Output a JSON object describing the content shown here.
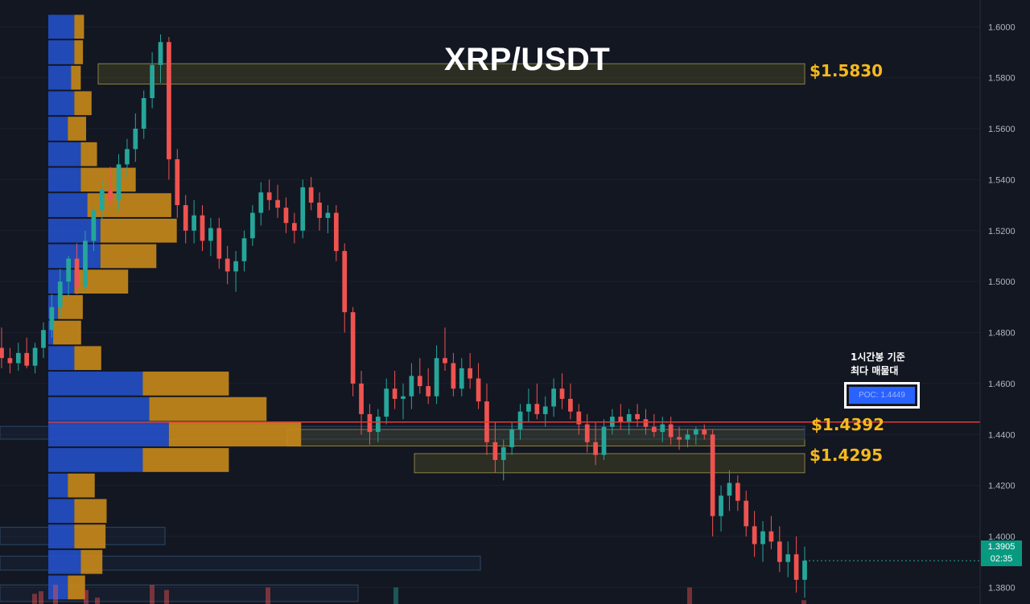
{
  "chart_data": {
    "type": "candlestick",
    "title": "XRP/USDT",
    "y_axis": {
      "ticks": [
        "1.6000",
        "1.5800",
        "1.5600",
        "1.5400",
        "1.5200",
        "1.5000",
        "1.4800",
        "1.4600",
        "1.4400",
        "1.4200",
        "1.4000",
        "1.3800"
      ],
      "ylim": [
        1.3735,
        1.6105
      ]
    },
    "current_price": "1.3905",
    "countdown": "02:35",
    "poc": {
      "label": "POC: 1.4449",
      "value": 1.4449
    },
    "annotation": [
      "1시간봉 기준",
      "최다 매물대"
    ],
    "levels": [
      {
        "label": "$1.5830",
        "high": 1.5855,
        "low": 1.5775
      },
      {
        "label": "$1.4392",
        "high": 1.442,
        "low": 1.4355
      },
      {
        "label": "$1.4295",
        "high": 1.4325,
        "low": 1.425
      }
    ],
    "volume_profile": [
      {
        "price": 1.6,
        "buy": 8,
        "sell": 0.9
      },
      {
        "price": 1.59,
        "buy": 8,
        "sell": 0.8
      },
      {
        "price": 1.58,
        "buy": 7,
        "sell": 0.9
      },
      {
        "price": 1.57,
        "buy": 8,
        "sell": 1.6
      },
      {
        "price": 1.56,
        "buy": 6,
        "sell": 1.7
      },
      {
        "price": 1.55,
        "buy": 10,
        "sell": 1.5
      },
      {
        "price": 1.54,
        "buy": 10,
        "sell": 5.1
      },
      {
        "price": 1.53,
        "buy": 12,
        "sell": 7.8
      },
      {
        "price": 1.52,
        "buy": 16,
        "sell": 7.1
      },
      {
        "price": 1.51,
        "buy": 16,
        "sell": 5.2
      },
      {
        "price": 1.5,
        "buy": 8,
        "sell": 5.0
      },
      {
        "price": 1.49,
        "buy": 3,
        "sell": 2.3
      },
      {
        "price": 1.48,
        "buy": 1.5,
        "sell": 2.6
      },
      {
        "price": 1.47,
        "buy": 8,
        "sell": 2.5
      },
      {
        "price": 1.46,
        "buy": 29,
        "sell": 8.0
      },
      {
        "price": 1.45,
        "buy": 31,
        "sell": 10.9
      },
      {
        "price": 1.44,
        "buy": 37,
        "sell": 12.3
      },
      {
        "price": 1.43,
        "buy": 29,
        "sell": 8.0
      },
      {
        "price": 1.42,
        "buy": 6,
        "sell": 2.5
      },
      {
        "price": 1.41,
        "buy": 8,
        "sell": 3.0
      },
      {
        "price": 1.4,
        "buy": 8,
        "sell": 2.9
      },
      {
        "price": 1.39,
        "buy": 10,
        "sell": 2.0
      },
      {
        "price": 1.38,
        "buy": 6,
        "sell": 1.6
      }
    ],
    "candles": [
      [
        1.474,
        1.482,
        1.466,
        1.47
      ],
      [
        1.47,
        1.474,
        1.464,
        1.468
      ],
      [
        1.468,
        1.476,
        1.465,
        1.472
      ],
      [
        1.472,
        1.478,
        1.466,
        1.467
      ],
      [
        1.467,
        1.476,
        1.464,
        1.474
      ],
      [
        1.474,
        1.484,
        1.47,
        1.481
      ],
      [
        1.481,
        1.495,
        1.478,
        1.49
      ],
      [
        1.49,
        1.505,
        1.486,
        1.5
      ],
      [
        1.5,
        1.51,
        1.494,
        1.509
      ],
      [
        1.509,
        1.515,
        1.495,
        1.498
      ],
      [
        1.498,
        1.52,
        1.496,
        1.516
      ],
      [
        1.516,
        1.53,
        1.512,
        1.528
      ],
      [
        1.528,
        1.54,
        1.524,
        1.536
      ],
      [
        1.536,
        1.545,
        1.53,
        1.532
      ],
      [
        1.532,
        1.55,
        1.528,
        1.546
      ],
      [
        1.546,
        1.556,
        1.541,
        1.552
      ],
      [
        1.552,
        1.566,
        1.547,
        1.56
      ],
      [
        1.56,
        1.575,
        1.556,
        1.572
      ],
      [
        1.572,
        1.59,
        1.568,
        1.585
      ],
      [
        1.585,
        1.597,
        1.578,
        1.594
      ],
      [
        1.594,
        1.596,
        1.54,
        1.548
      ],
      [
        1.548,
        1.552,
        1.525,
        1.53
      ],
      [
        1.53,
        1.534,
        1.515,
        1.52
      ],
      [
        1.52,
        1.532,
        1.515,
        1.526
      ],
      [
        1.526,
        1.53,
        1.512,
        1.516
      ],
      [
        1.516,
        1.525,
        1.51,
        1.521
      ],
      [
        1.521,
        1.525,
        1.505,
        1.509
      ],
      [
        1.509,
        1.514,
        1.499,
        1.504
      ],
      [
        1.504,
        1.512,
        1.496,
        1.508
      ],
      [
        1.508,
        1.52,
        1.504,
        1.517
      ],
      [
        1.517,
        1.53,
        1.514,
        1.527
      ],
      [
        1.527,
        1.539,
        1.522,
        1.535
      ],
      [
        1.535,
        1.54,
        1.528,
        1.532
      ],
      [
        1.532,
        1.538,
        1.525,
        1.529
      ],
      [
        1.529,
        1.533,
        1.519,
        1.523
      ],
      [
        1.523,
        1.527,
        1.515,
        1.52
      ],
      [
        1.52,
        1.54,
        1.517,
        1.537
      ],
      [
        1.537,
        1.541,
        1.528,
        1.531
      ],
      [
        1.531,
        1.535,
        1.52,
        1.525
      ],
      [
        1.525,
        1.53,
        1.519,
        1.527
      ],
      [
        1.527,
        1.53,
        1.508,
        1.512
      ],
      [
        1.512,
        1.515,
        1.48,
        1.488
      ],
      [
        1.488,
        1.49,
        1.455,
        1.46
      ],
      [
        1.46,
        1.465,
        1.44,
        1.448
      ],
      [
        1.448,
        1.452,
        1.436,
        1.441
      ],
      [
        1.441,
        1.45,
        1.437,
        1.447
      ],
      [
        1.447,
        1.462,
        1.444,
        1.458
      ],
      [
        1.458,
        1.465,
        1.45,
        1.454
      ],
      [
        1.454,
        1.46,
        1.446,
        1.455
      ],
      [
        1.455,
        1.468,
        1.45,
        1.463
      ],
      [
        1.463,
        1.47,
        1.456,
        1.459
      ],
      [
        1.459,
        1.466,
        1.452,
        1.455
      ],
      [
        1.455,
        1.475,
        1.452,
        1.47
      ],
      [
        1.47,
        1.482,
        1.465,
        1.468
      ],
      [
        1.468,
        1.472,
        1.455,
        1.458
      ],
      [
        1.458,
        1.47,
        1.455,
        1.466
      ],
      [
        1.466,
        1.472,
        1.458,
        1.462
      ],
      [
        1.462,
        1.468,
        1.45,
        1.453
      ],
      [
        1.453,
        1.46,
        1.432,
        1.437
      ],
      [
        1.437,
        1.445,
        1.425,
        1.43
      ],
      [
        1.43,
        1.438,
        1.422,
        1.435
      ],
      [
        1.435,
        1.445,
        1.432,
        1.442
      ],
      [
        1.442,
        1.452,
        1.438,
        1.449
      ],
      [
        1.449,
        1.458,
        1.445,
        1.452
      ],
      [
        1.452,
        1.46,
        1.446,
        1.448
      ],
      [
        1.448,
        1.455,
        1.443,
        1.451
      ],
      [
        1.451,
        1.462,
        1.447,
        1.458
      ],
      [
        1.458,
        1.464,
        1.45,
        1.454
      ],
      [
        1.454,
        1.46,
        1.446,
        1.449
      ],
      [
        1.449,
        1.452,
        1.44,
        1.444
      ],
      [
        1.444,
        1.448,
        1.433,
        1.437
      ],
      [
        1.437,
        1.445,
        1.428,
        1.432
      ],
      [
        1.432,
        1.446,
        1.43,
        1.443
      ],
      [
        1.443,
        1.45,
        1.44,
        1.447
      ],
      [
        1.447,
        1.452,
        1.442,
        1.445
      ],
      [
        1.445,
        1.45,
        1.44,
        1.448
      ],
      [
        1.448,
        1.452,
        1.443,
        1.446
      ],
      [
        1.446,
        1.45,
        1.44,
        1.443
      ],
      [
        1.443,
        1.448,
        1.439,
        1.441
      ],
      [
        1.441,
        1.447,
        1.437,
        1.444
      ],
      [
        1.444,
        1.447,
        1.436,
        1.439
      ],
      [
        1.439,
        1.443,
        1.434,
        1.438
      ],
      [
        1.438,
        1.442,
        1.435,
        1.44
      ],
      [
        1.44,
        1.443,
        1.436,
        1.442
      ],
      [
        1.442,
        1.444,
        1.438,
        1.44
      ],
      [
        1.44,
        1.442,
        1.4,
        1.408
      ],
      [
        1.408,
        1.42,
        1.402,
        1.416
      ],
      [
        1.416,
        1.426,
        1.41,
        1.421
      ],
      [
        1.421,
        1.424,
        1.41,
        1.414
      ],
      [
        1.414,
        1.418,
        1.4,
        1.404
      ],
      [
        1.404,
        1.41,
        1.392,
        1.397
      ],
      [
        1.397,
        1.406,
        1.39,
        1.402
      ],
      [
        1.402,
        1.408,
        1.395,
        1.398
      ],
      [
        1.398,
        1.404,
        1.386,
        1.39
      ],
      [
        1.39,
        1.398,
        1.384,
        1.393
      ],
      [
        1.393,
        1.4,
        1.378,
        1.383
      ],
      [
        1.383,
        1.396,
        1.376,
        1.3905
      ]
    ]
  }
}
